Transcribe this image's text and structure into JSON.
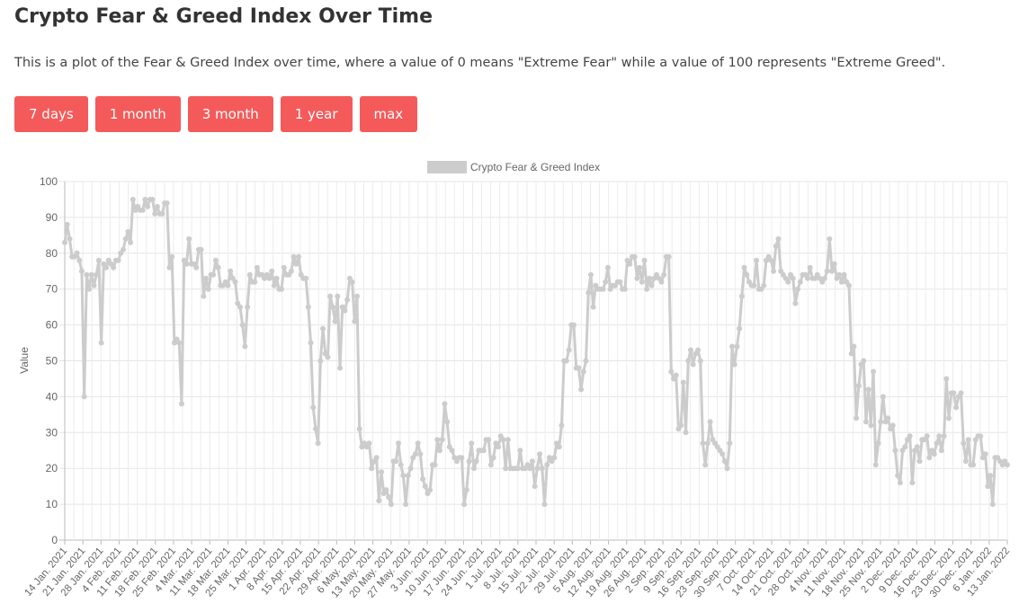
{
  "page": {
    "title": "Crypto Fear & Greed Index Over Time",
    "description": "This is a plot of the Fear & Greed Index over time, where a value of 0 means \"Extreme Fear\" while a value of 100 represents \"Extreme Greed\".",
    "buttons": [
      "7 days",
      "1 month",
      "3 month",
      "1 year",
      "max"
    ]
  },
  "chart_data": {
    "type": "line",
    "legend": "Crypto Fear & Greed Index",
    "ylabel": "Value",
    "ylim": [
      0,
      100
    ],
    "yticks": [
      0,
      10,
      20,
      30,
      40,
      50,
      60,
      70,
      80,
      90,
      100
    ],
    "grid": true,
    "legend_position": "top",
    "series_color": "#cccccc",
    "xtick_labels": [
      "14 Jan. 2021",
      "21 Jan. 2021",
      "28 Jan. 2021",
      "4 Feb. 2021",
      "11 Feb. 2021",
      "18 Feb. 2021",
      "25 Feb. 2021",
      "4 Mar. 2021",
      "11 Mar. 2021",
      "18 Mar. 2021",
      "25 Mar. 2021",
      "1 Apr. 2021",
      "8 Apr. 2021",
      "15 Apr. 2021",
      "22 Apr. 2021",
      "29 Apr. 2021",
      "6 May. 2021",
      "13 May. 2021",
      "20 May. 2021",
      "27 May. 2021",
      "3 Jun. 2021",
      "10 Jun. 2021",
      "17 Jun. 2021",
      "24 Jun. 2021",
      "1 Jul. 2021",
      "8 Jul. 2021",
      "15 Jul. 2021",
      "22 Jul. 2021",
      "29 Jul. 2021",
      "5 Aug. 2021",
      "12 Aug. 2021",
      "19 Aug. 2021",
      "26 Aug. 2021",
      "2 Sep. 2021",
      "9 Sep. 2021",
      "16 Sep. 2021",
      "23 Sep. 2021",
      "30 Sep. 2021",
      "7 Oct. 2021",
      "14 Oct. 2021",
      "21 Oct. 2021",
      "28 Oct. 2021",
      "4 Nov. 2021",
      "11 Nov. 2021",
      "18 Nov. 2021",
      "25 Nov. 2021",
      "2 Dec. 2021",
      "9 Dec. 2021",
      "16 Dec. 2021",
      "23 Dec. 2021",
      "30 Dec. 2021",
      "6 Jan. 2022",
      "13 Jan. 2022"
    ],
    "values": [
      83,
      88,
      84,
      79,
      79,
      80,
      78,
      75,
      40,
      74,
      70,
      74,
      71,
      74,
      78,
      55,
      77,
      76,
      78,
      77,
      76,
      78,
      78,
      80,
      81,
      84,
      86,
      83,
      95,
      92,
      93,
      92,
      92,
      95,
      93,
      95,
      95,
      91,
      93,
      91,
      91,
      94,
      94,
      76,
      79,
      55,
      56,
      55,
      38,
      78,
      77,
      84,
      77,
      77,
      76,
      81,
      81,
      68,
      73,
      70,
      74,
      74,
      78,
      76,
      71,
      71,
      72,
      71,
      75,
      73,
      72,
      66,
      65,
      60,
      54,
      65,
      74,
      72,
      72,
      76,
      74,
      74,
      73,
      74,
      73,
      75,
      71,
      73,
      70,
      70,
      76,
      74,
      74,
      75,
      79,
      77,
      79,
      74,
      73,
      73,
      65,
      55,
      37,
      31,
      27,
      50,
      59,
      52,
      51,
      68,
      65,
      61,
      68,
      48,
      65,
      64,
      67,
      73,
      72,
      61,
      68,
      31,
      26,
      27,
      26,
      27,
      20,
      22,
      23,
      11,
      19,
      13,
      14,
      12,
      10,
      22,
      22,
      27,
      21,
      18,
      10,
      18,
      20,
      23,
      24,
      27,
      24,
      17,
      15,
      13,
      14,
      21,
      21,
      28,
      25,
      28,
      38,
      33,
      26,
      25,
      23,
      22,
      23,
      23,
      10,
      14,
      22,
      27,
      20,
      22,
      25,
      25,
      25,
      28,
      28,
      21,
      23,
      27,
      26,
      29,
      28,
      20,
      28,
      20,
      20,
      20,
      20,
      25,
      20,
      20,
      21,
      20,
      22,
      15,
      20,
      24,
      20,
      10,
      21,
      23,
      22,
      23,
      27,
      26,
      32,
      50,
      50,
      53,
      60,
      60,
      48,
      48,
      42,
      47,
      50,
      69,
      74,
      65,
      71,
      70,
      70,
      70,
      72,
      76,
      70,
      71,
      71,
      72,
      72,
      70,
      70,
      78,
      77,
      79,
      79,
      73,
      76,
      72,
      78,
      70,
      73,
      71,
      73,
      74,
      73,
      72,
      74,
      79,
      79,
      47,
      45,
      46,
      31,
      32,
      44,
      30,
      50,
      53,
      49,
      52,
      53,
      50,
      27,
      21,
      27,
      33,
      28,
      27,
      26,
      25,
      24,
      22,
      20,
      27,
      54,
      49,
      54,
      59,
      68,
      76,
      74,
      72,
      71,
      71,
      78,
      70,
      70,
      71,
      78,
      79,
      78,
      75,
      82,
      84,
      75,
      74,
      73,
      72,
      74,
      73,
      66,
      70,
      72,
      74,
      74,
      73,
      76,
      73,
      73,
      74,
      73,
      72,
      73,
      75,
      84,
      75,
      77,
      73,
      74,
      72,
      74,
      72,
      71,
      52,
      54,
      34,
      43,
      49,
      50,
      33,
      42,
      32,
      47,
      21,
      27,
      33,
      40,
      33,
      34,
      31,
      32,
      25,
      18,
      16,
      25,
      26,
      28,
      29,
      16,
      25,
      26,
      22,
      28,
      28,
      29,
      23,
      25,
      24,
      27,
      29,
      25,
      29,
      45,
      34,
      41,
      41,
      37,
      40,
      41,
      27,
      22,
      28,
      21,
      21,
      28,
      29,
      29,
      23,
      24,
      15,
      18,
      10,
      23,
      23,
      22,
      21,
      22,
      21
    ]
  }
}
